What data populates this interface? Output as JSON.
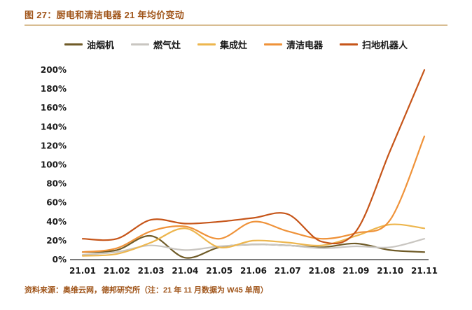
{
  "figure": {
    "title": "图 27：厨电和清洁电器 21 年均价变动",
    "source_note": "资料来源：奥维云网，德邦研究所（注：21 年 11 月数据为 W45 单周）"
  },
  "colors": {
    "title_text": "#A0551A",
    "divider": "#D8BD92",
    "axis": "#2B2B2B",
    "tick_text": "#1A1A1A"
  },
  "chart_data": {
    "type": "line",
    "title": "厨电和清洁电器 21 年均价变动",
    "x": [
      "21.01",
      "21.02",
      "21.03",
      "21.04",
      "21.05",
      "21.06",
      "21.07",
      "21.08",
      "21.09",
      "21.10",
      "21.11"
    ],
    "series": [
      {
        "name": "油烟机",
        "key": "range-hood",
        "color": "#6F5B28",
        "values": [
          8,
          10,
          25,
          2,
          13,
          16,
          15,
          13,
          17,
          10,
          8
        ]
      },
      {
        "name": "燃气灶",
        "key": "gas-stove",
        "color": "#C9C6C1",
        "values": [
          5,
          8,
          15,
          10,
          14,
          16,
          15,
          12,
          14,
          13,
          22
        ]
      },
      {
        "name": "集成灶",
        "key": "integrated-stove",
        "color": "#EDB64E",
        "values": [
          4,
          6,
          18,
          33,
          13,
          20,
          18,
          15,
          25,
          37,
          33
        ]
      },
      {
        "name": "清洁电器",
        "key": "cleaning-appliance",
        "color": "#EF9239",
        "values": [
          8,
          12,
          30,
          35,
          22,
          40,
          30,
          22,
          28,
          42,
          130
        ]
      },
      {
        "name": "扫地机器人",
        "key": "robot-vacuum",
        "color": "#C65519",
        "values": [
          22,
          22,
          42,
          38,
          40,
          44,
          48,
          19,
          30,
          115,
          200
        ]
      }
    ],
    "ylim": [
      0,
      200
    ],
    "ytick_step": 20,
    "ytick_format": "percent",
    "grid": false,
    "legend_position": "top"
  }
}
